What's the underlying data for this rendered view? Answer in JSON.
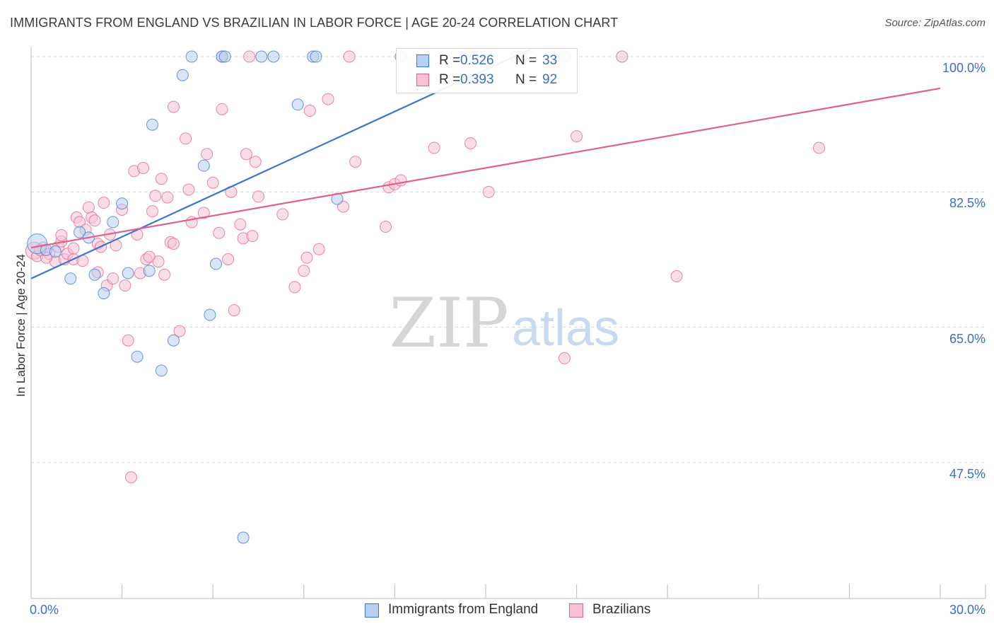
{
  "header": {
    "title": "IMMIGRANTS FROM ENGLAND VS BRAZILIAN IN LABOR FORCE | AGE 20-24 CORRELATION CHART",
    "source": "Source: ZipAtlas.com"
  },
  "watermark": {
    "zip": "ZIP",
    "atlas": "atlas"
  },
  "colors": {
    "blue": "#3a77cc",
    "blue_fill": "#b8d0f0",
    "pink": "#e0608e",
    "pink_fill": "#f6c2d4",
    "tick_text": "#3a6fc8",
    "grid": "#d8d8d8"
  },
  "legend": {
    "series": [
      {
        "r_label": "R =",
        "r_value": "0.526",
        "n_label": "N =",
        "n_value": "33"
      },
      {
        "r_label": "R =",
        "r_value": "0.393",
        "n_label": "N =",
        "n_value": "92"
      }
    ]
  },
  "bottom_legend": {
    "england": "Immigrants from England",
    "brazilians": "Brazilians"
  },
  "chart_data": {
    "type": "scatter",
    "title": "IMMIGRANTS FROM ENGLAND VS BRAZILIAN IN LABOR FORCE | AGE 20-24 CORRELATION CHART",
    "xlabel": "",
    "ylabel": "In Labor Force | Age 20-24",
    "xlim": [
      0,
      30
    ],
    "ylim": [
      32,
      102
    ],
    "x_tick_labels": [
      "0.0%",
      "30.0%"
    ],
    "y_ticks": [
      47.5,
      65.0,
      82.5,
      100.0
    ],
    "y_tick_labels": [
      "47.5%",
      "65.0%",
      "82.5%",
      "100.0%"
    ],
    "series": [
      {
        "name": "Immigrants from England",
        "r": 0.526,
        "n": 33,
        "trend": {
          "x0": 0.0,
          "y0": 71.3,
          "x1": 16.5,
          "y1": 101.0
        },
        "points": [
          [
            0.2,
            75.8,
            14
          ],
          [
            0.5,
            75.0,
            8
          ],
          [
            0.8,
            74.8,
            8
          ],
          [
            1.3,
            71.3,
            8
          ],
          [
            1.6,
            77.3,
            8
          ],
          [
            1.9,
            76.6,
            8
          ],
          [
            2.1,
            71.8,
            8
          ],
          [
            2.4,
            69.4,
            8
          ],
          [
            2.7,
            78.6,
            8
          ],
          [
            3.0,
            81.0,
            8
          ],
          [
            3.2,
            72.0,
            8
          ],
          [
            3.5,
            61.2,
            8
          ],
          [
            3.9,
            72.3,
            8
          ],
          [
            4.0,
            91.2,
            8
          ],
          [
            4.3,
            59.4,
            8
          ],
          [
            4.7,
            63.3,
            8
          ],
          [
            5.0,
            97.6,
            8
          ],
          [
            5.3,
            100.0,
            8
          ],
          [
            5.7,
            85.9,
            8
          ],
          [
            5.9,
            66.6,
            8
          ],
          [
            6.1,
            73.2,
            8
          ],
          [
            6.3,
            100.0,
            8
          ],
          [
            7.0,
            37.8,
            8
          ],
          [
            7.6,
            100.0,
            8
          ],
          [
            8.0,
            100.0,
            8
          ],
          [
            8.8,
            93.8,
            8
          ],
          [
            9.3,
            100.0,
            8
          ],
          [
            10.1,
            81.6,
            8
          ],
          [
            12.2,
            100.0,
            8
          ],
          [
            16.0,
            100.0,
            8
          ],
          [
            17.6,
            100.0,
            8
          ],
          [
            9.4,
            100.0,
            8
          ],
          [
            6.4,
            100.0,
            8
          ]
        ]
      },
      {
        "name": "Brazilians",
        "r": 0.393,
        "n": 92,
        "trend": {
          "x0": 0.0,
          "y0": 75.3,
          "x1": 30.0,
          "y1": 95.9
        },
        "points": [
          [
            0.1,
            74.9,
            12
          ],
          [
            0.2,
            74.2,
            8
          ],
          [
            0.4,
            75.3,
            8
          ],
          [
            0.6,
            74.5,
            8
          ],
          [
            0.8,
            73.5,
            8
          ],
          [
            0.9,
            75.4,
            8
          ],
          [
            1.0,
            76.1,
            8
          ],
          [
            1.1,
            73.8,
            8
          ],
          [
            1.2,
            74.5,
            8
          ],
          [
            1.4,
            73.8,
            8
          ],
          [
            1.4,
            75.2,
            8
          ],
          [
            1.5,
            79.2,
            8
          ],
          [
            1.6,
            78.6,
            8
          ],
          [
            1.7,
            73.6,
            8
          ],
          [
            1.8,
            77.6,
            8
          ],
          [
            1.9,
            80.5,
            8
          ],
          [
            2.0,
            79.2,
            8
          ],
          [
            2.1,
            78.8,
            8
          ],
          [
            2.2,
            75.8,
            8
          ],
          [
            2.2,
            72.1,
            8
          ],
          [
            2.4,
            81.1,
            8
          ],
          [
            2.5,
            70.4,
            8
          ],
          [
            2.6,
            77.0,
            8
          ],
          [
            2.7,
            71.3,
            8
          ],
          [
            2.8,
            75.6,
            8
          ],
          [
            3.0,
            80.2,
            8
          ],
          [
            3.1,
            70.4,
            8
          ],
          [
            3.2,
            63.3,
            8
          ],
          [
            3.3,
            45.6,
            8
          ],
          [
            3.4,
            85.2,
            8
          ],
          [
            3.5,
            77.0,
            8
          ],
          [
            3.6,
            72.0,
            8
          ],
          [
            3.7,
            85.6,
            8
          ],
          [
            3.8,
            73.8,
            8
          ],
          [
            3.9,
            74.1,
            8
          ],
          [
            4.0,
            80.0,
            8
          ],
          [
            4.1,
            82.0,
            8
          ],
          [
            4.2,
            73.5,
            8
          ],
          [
            4.3,
            84.2,
            8
          ],
          [
            4.4,
            71.8,
            8
          ],
          [
            4.5,
            81.8,
            8
          ],
          [
            4.6,
            76.0,
            8
          ],
          [
            4.7,
            75.8,
            8
          ],
          [
            4.7,
            93.5,
            8
          ],
          [
            4.9,
            64.5,
            8
          ],
          [
            5.1,
            89.4,
            8
          ],
          [
            5.2,
            82.8,
            8
          ],
          [
            5.3,
            78.6,
            8
          ],
          [
            5.7,
            79.8,
            8
          ],
          [
            5.8,
            87.4,
            8
          ],
          [
            6.0,
            83.7,
            8
          ],
          [
            6.2,
            77.2,
            8
          ],
          [
            6.3,
            93.2,
            8
          ],
          [
            6.5,
            73.8,
            8
          ],
          [
            6.6,
            82.5,
            8
          ],
          [
            6.7,
            67.2,
            8
          ],
          [
            6.9,
            78.3,
            8
          ],
          [
            7.0,
            76.5,
            8
          ],
          [
            7.1,
            87.4,
            8
          ],
          [
            7.2,
            100.0,
            8
          ],
          [
            7.3,
            76.8,
            8
          ],
          [
            7.4,
            86.4,
            8
          ],
          [
            7.5,
            81.9,
            8
          ],
          [
            6.3,
            100.0,
            8
          ],
          [
            8.3,
            79.6,
            8
          ],
          [
            8.7,
            70.2,
            8
          ],
          [
            9.0,
            72.3,
            8
          ],
          [
            9.1,
            74.0,
            8
          ],
          [
            9.2,
            93.0,
            8
          ],
          [
            9.5,
            75.1,
            8
          ],
          [
            9.8,
            94.5,
            8
          ],
          [
            10.3,
            80.6,
            8
          ],
          [
            10.5,
            100.0,
            8
          ],
          [
            10.7,
            86.4,
            8
          ],
          [
            11.7,
            78.0,
            8
          ],
          [
            11.8,
            83.1,
            8
          ],
          [
            12.0,
            83.5,
            8
          ],
          [
            12.2,
            84.0,
            8
          ],
          [
            13.3,
            88.2,
            8
          ],
          [
            14.5,
            88.8,
            8
          ],
          [
            15.1,
            82.5,
            8
          ],
          [
            16.2,
            100.0,
            8
          ],
          [
            16.5,
            100.0,
            8
          ],
          [
            17.6,
            61.0,
            8
          ],
          [
            18.0,
            89.7,
            8
          ],
          [
            19.5,
            100.0,
            8
          ],
          [
            21.3,
            71.6,
            8
          ],
          [
            26.0,
            88.2,
            8
          ],
          [
            0.5,
            74.0,
            8
          ],
          [
            1.0,
            76.9,
            8
          ],
          [
            0.3,
            75.0,
            8
          ],
          [
            2.3,
            75.4,
            8
          ]
        ]
      }
    ]
  }
}
